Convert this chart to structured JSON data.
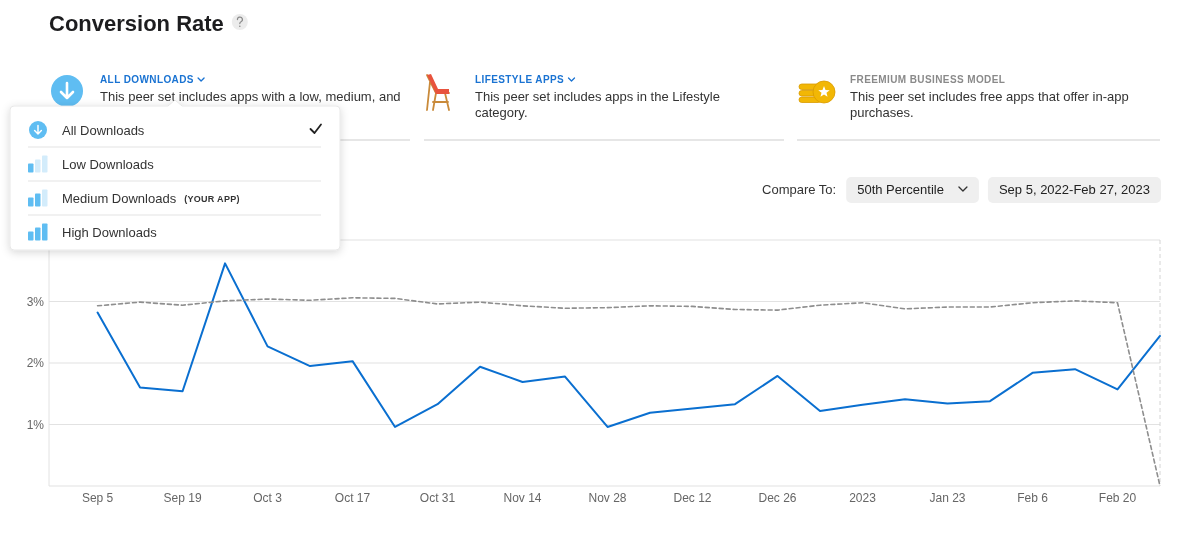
{
  "chart_data": {
    "type": "line",
    "title": "Conversion Rate",
    "annotations": [
      "ALL DOWNLOADS",
      "This peer set includes apps with a low, medium, and",
      "LIFESTYLE APPS",
      "This peer set includes apps in the Lifestyle category.",
      "FREEMIUM BUSINESS MODEL",
      "This peer set includes free apps that offer in-app purchases.",
      "Compare To:",
      "50th Percentile",
      "Sep 5, 2022-Feb 27, 2023",
      "All Downloads",
      "Low Downloads",
      "Medium Downloads",
      "(YOUR APP)",
      "High Downloads"
    ],
    "x": [
      "2022-09-05",
      "2022-09-12",
      "2022-09-19",
      "2022-09-26",
      "2022-10-03",
      "2022-10-10",
      "2022-10-17",
      "2022-10-24",
      "2022-10-31",
      "2022-11-07",
      "2022-11-14",
      "2022-11-21",
      "2022-11-28",
      "2022-12-05",
      "2022-12-12",
      "2022-12-19",
      "2022-12-26",
      "2023-01-02",
      "2023-01-09",
      "2023-01-16",
      "2023-01-23",
      "2023-01-30",
      "2023-02-06",
      "2023-02-13",
      "2023-02-20",
      "2023-02-27"
    ],
    "series": [
      {
        "color": "#0a6fd0",
        "line_style": "solid",
        "values": [
          2.82,
          1.6,
          1.54,
          3.62,
          2.27,
          1.95,
          2.03,
          0.96,
          1.33,
          1.94,
          1.69,
          1.78,
          0.96,
          1.19,
          1.26,
          1.33,
          1.79,
          1.22,
          1.32,
          1.41,
          1.34,
          1.38,
          1.84,
          1.9,
          1.57,
          2.44
        ]
      },
      {
        "color": "#8e8e8e",
        "line_style": "dashed",
        "values": [
          2.93,
          2.99,
          2.94,
          3.01,
          3.04,
          3.02,
          3.06,
          3.05,
          2.96,
          2.99,
          2.93,
          2.89,
          2.9,
          2.93,
          2.92,
          2.87,
          2.86,
          2.94,
          2.98,
          2.88,
          2.91,
          2.91,
          2.98,
          3.01,
          2.98,
          0
        ]
      }
    ],
    "xlim": [
      "2022-08-28",
      "2023-02-27"
    ],
    "xticks": [
      {
        "value": "2022-09-05",
        "label": "Sep 5"
      },
      {
        "value": "2022-09-19",
        "label": "Sep 19"
      },
      {
        "value": "2022-10-03",
        "label": "Oct 3"
      },
      {
        "value": "2022-10-17",
        "label": "Oct 17"
      },
      {
        "value": "2022-10-31",
        "label": "Oct 31"
      },
      {
        "value": "2022-11-14",
        "label": "Nov 14"
      },
      {
        "value": "2022-11-28",
        "label": "Nov 28"
      },
      {
        "value": "2022-12-12",
        "label": "Dec 12"
      },
      {
        "value": "2022-12-26",
        "label": "Dec 26"
      },
      {
        "value": "2023-01-09",
        "label": "2023"
      },
      {
        "value": "2023-01-23",
        "label": "Jan 23"
      },
      {
        "value": "2023-02-06",
        "label": "Feb 6"
      },
      {
        "value": "2023-02-20",
        "label": "Feb 20"
      }
    ],
    "ylim": [
      0,
      4
    ],
    "yticks": [
      {
        "value": 0,
        "label": null
      },
      {
        "value": 1,
        "label": "1%"
      },
      {
        "value": 2,
        "label": "2%"
      },
      {
        "value": 3,
        "label": "3%"
      },
      {
        "value": 4,
        "label": null
      }
    ],
    "grid": "y",
    "ref_lines": [
      {
        "axis": "x",
        "value": "2023-02-27",
        "color": "#d4d4d4",
        "line_style": "dashed"
      }
    ]
  }
}
